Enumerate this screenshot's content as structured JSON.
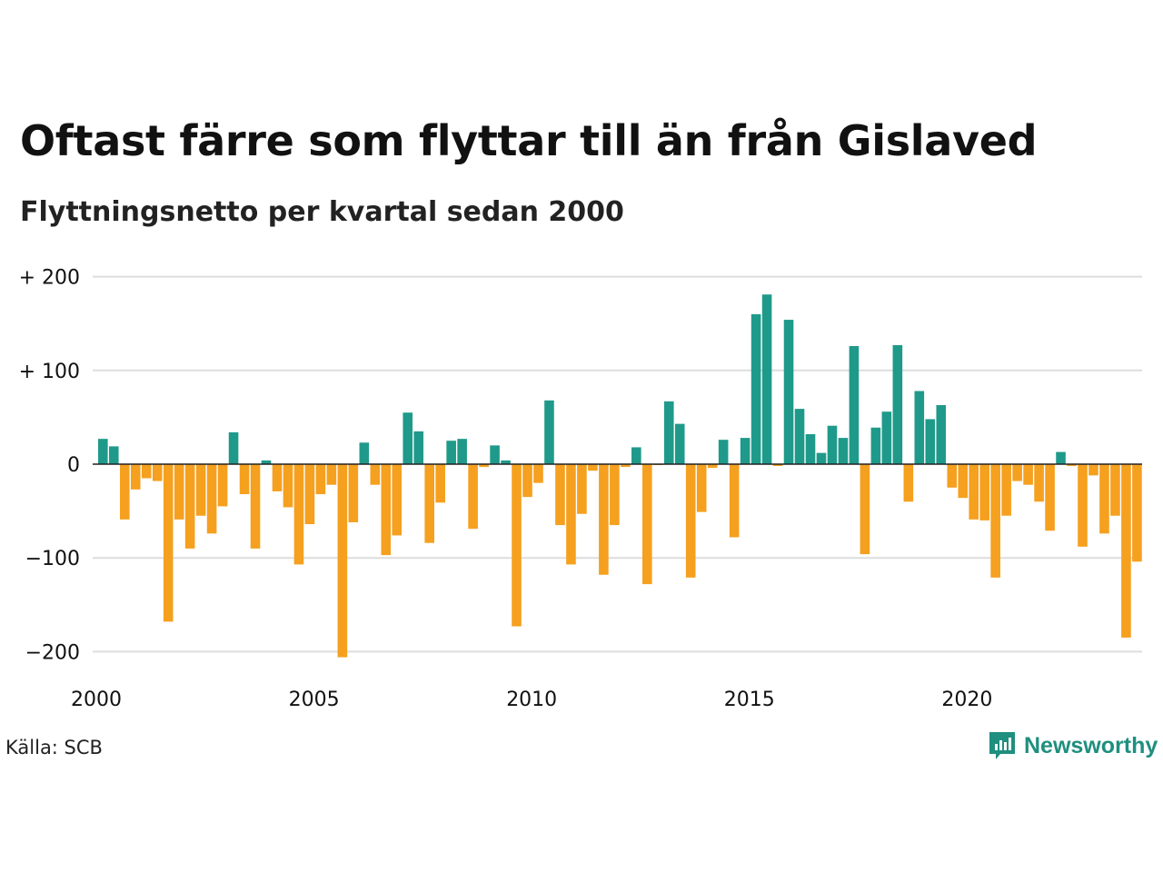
{
  "chart_data": {
    "type": "bar",
    "title": "Oftast färre som flyttar till än från Gislaved",
    "subtitle": "Flyttningsnetto per kvartal sedan 2000",
    "source": "Källa: SCB",
    "brand": "Newsworthy",
    "ylim": [
      -210,
      210
    ],
    "y_ticks": [
      {
        "value": 200,
        "label": "+ 200"
      },
      {
        "value": 100,
        "label": "+ 100"
      },
      {
        "value": 0,
        "label": "0"
      },
      {
        "value": -100,
        "label": "−100"
      },
      {
        "value": -200,
        "label": "−200"
      }
    ],
    "x_ticks": [
      {
        "value": 2000,
        "label": "2000"
      },
      {
        "value": 2005,
        "label": "2005"
      },
      {
        "value": 2010,
        "label": "2010"
      },
      {
        "value": 2015,
        "label": "2015"
      },
      {
        "value": 2020,
        "label": "2020"
      }
    ],
    "x_start": 2000,
    "quarters_per_year": 4,
    "grid": true,
    "colors": {
      "positive": "#1f9a8a",
      "negative": "#f5a01f",
      "grid": "#dddddd",
      "zero": "#222222"
    },
    "values": [
      27,
      19,
      -59,
      -27,
      -15,
      -18,
      -168,
      -59,
      -90,
      -55,
      -74,
      -45,
      34,
      -32,
      -90,
      4,
      -29,
      -46,
      -107,
      -64,
      -32,
      -22,
      -206,
      -62,
      23,
      -22,
      -97,
      -76,
      55,
      35,
      -84,
      -41,
      25,
      27,
      -69,
      -3,
      20,
      4,
      -173,
      -35,
      -20,
      68,
      -65,
      -107,
      -53,
      -7,
      -118,
      -65,
      -3,
      18,
      -128,
      -1,
      67,
      43,
      -121,
      -51,
      -4,
      26,
      -78,
      28,
      160,
      181,
      -2,
      154,
      59,
      32,
      12,
      41,
      28,
      126,
      -96,
      39,
      56,
      127,
      -40,
      78,
      48,
      63,
      -25,
      -36,
      -59,
      -60,
      -121,
      -55,
      -18,
      -22,
      -40,
      -71,
      13,
      -2,
      -88,
      -12,
      -74,
      -55,
      -185,
      -104
    ]
  }
}
